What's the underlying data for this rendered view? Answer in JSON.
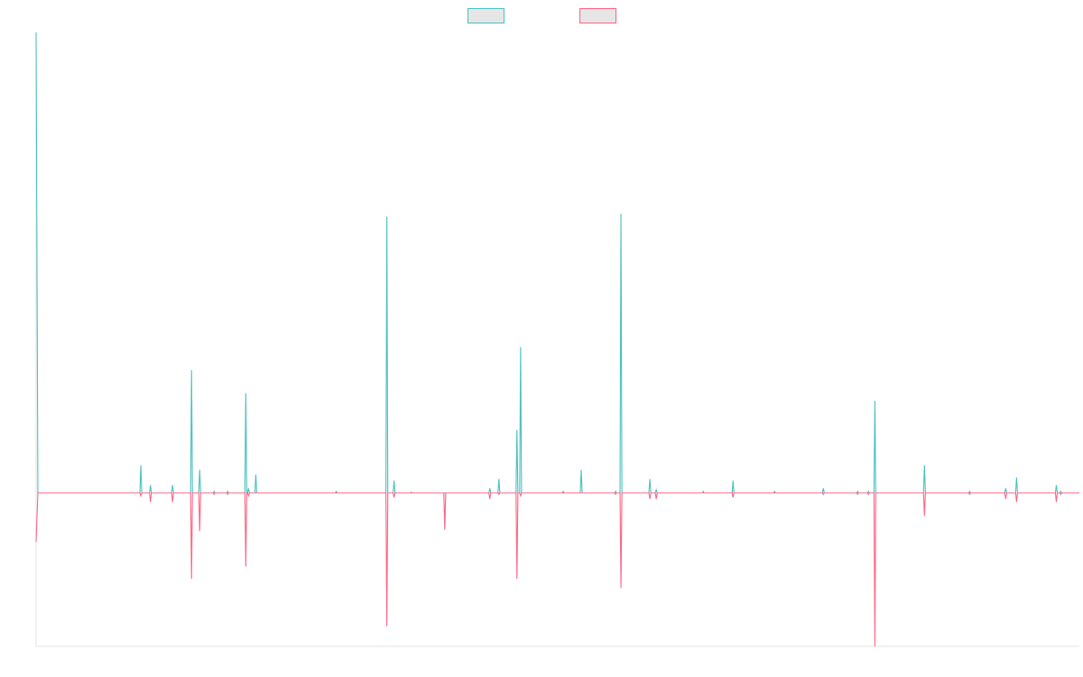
{
  "chart_data": {
    "type": "line",
    "title": "",
    "xlabel": "",
    "ylabel": "",
    "grid": false,
    "legend_position": "top-center",
    "x_range": [
      0,
      1
    ],
    "ylim": [
      -100,
      300
    ],
    "baseline": 0,
    "series": [
      {
        "color": "#4bc0c0",
        "fill": "#e6e6e6",
        "points": [
          [
            0.0,
            300
          ],
          [
            0.0017,
            0
          ],
          [
            0.0995,
            0
          ],
          [
            0.1004,
            18
          ],
          [
            0.1013,
            0
          ],
          [
            0.1087,
            0
          ],
          [
            0.1096,
            5
          ],
          [
            0.1105,
            0
          ],
          [
            0.1299,
            0
          ],
          [
            0.1308,
            5
          ],
          [
            0.1317,
            0
          ],
          [
            0.1481,
            0
          ],
          [
            0.149,
            80
          ],
          [
            0.1499,
            0
          ],
          [
            0.1559,
            0
          ],
          [
            0.1568,
            15
          ],
          [
            0.1577,
            0
          ],
          [
            0.1698,
            0
          ],
          [
            0.1706,
            1
          ],
          [
            0.1715,
            0
          ],
          [
            0.1827,
            0
          ],
          [
            0.1836,
            1
          ],
          [
            0.1845,
            0
          ],
          [
            0.2001,
            0
          ],
          [
            0.201,
            65
          ],
          [
            0.2019,
            0
          ],
          [
            0.2027,
            0
          ],
          [
            0.2036,
            3
          ],
          [
            0.2045,
            0
          ],
          [
            0.2097,
            0
          ],
          [
            0.2106,
            12
          ],
          [
            0.2115,
            0
          ],
          [
            0.2868,
            0
          ],
          [
            0.2877,
            1
          ],
          [
            0.2886,
            0
          ],
          [
            0.3353,
            0
          ],
          [
            0.3362,
            180
          ],
          [
            0.3371,
            0
          ],
          [
            0.3422,
            0
          ],
          [
            0.3431,
            8
          ],
          [
            0.344,
            0
          ],
          [
            0.3587,
            0
          ],
          [
            0.3596,
            0.5
          ],
          [
            0.3605,
            0
          ],
          [
            0.434,
            0
          ],
          [
            0.4349,
            3
          ],
          [
            0.4358,
            0
          ],
          [
            0.4427,
            0
          ],
          [
            0.4436,
            9
          ],
          [
            0.4445,
            0
          ],
          [
            0.46,
            0
          ],
          [
            0.4609,
            41
          ],
          [
            0.4618,
            0
          ],
          [
            0.4635,
            0
          ],
          [
            0.4644,
            95
          ],
          [
            0.4653,
            0
          ],
          [
            0.5043,
            0
          ],
          [
            0.5052,
            1
          ],
          [
            0.5061,
            0
          ],
          [
            0.5216,
            0
          ],
          [
            0.5225,
            15
          ],
          [
            0.5234,
            0
          ],
          [
            0.5545,
            0
          ],
          [
            0.5554,
            1
          ],
          [
            0.5563,
            0
          ],
          [
            0.5597,
            0
          ],
          [
            0.5606,
            182
          ],
          [
            0.5615,
            0
          ],
          [
            0.5874,
            0
          ],
          [
            0.5883,
            9
          ],
          [
            0.5892,
            0
          ],
          [
            0.5935,
            0
          ],
          [
            0.5944,
            2
          ],
          [
            0.5953,
            0
          ],
          [
            0.6386,
            0
          ],
          [
            0.6395,
            1
          ],
          [
            0.6404,
            0
          ],
          [
            0.6672,
            0
          ],
          [
            0.668,
            8
          ],
          [
            0.6689,
            0
          ],
          [
            0.707,
            0
          ],
          [
            0.7078,
            1
          ],
          [
            0.7087,
            0
          ],
          [
            0.7537,
            0
          ],
          [
            0.7546,
            3
          ],
          [
            0.7554,
            0
          ],
          [
            0.7866,
            0
          ],
          [
            0.7874,
            1
          ],
          [
            0.7883,
            0
          ],
          [
            0.797,
            0
          ],
          [
            0.7978,
            1
          ],
          [
            0.7987,
            0
          ],
          [
            0.8031,
            0
          ],
          [
            0.804,
            60
          ],
          [
            0.8048,
            0
          ],
          [
            0.8506,
            0
          ],
          [
            0.8515,
            18
          ],
          [
            0.8524,
            0
          ],
          [
            0.8939,
            0
          ],
          [
            0.8948,
            1
          ],
          [
            0.8957,
            0
          ],
          [
            0.9285,
            0
          ],
          [
            0.9294,
            3
          ],
          [
            0.9303,
            0
          ],
          [
            0.9389,
            0
          ],
          [
            0.9398,
            10
          ],
          [
            0.9407,
            0
          ],
          [
            0.977,
            0
          ],
          [
            0.9779,
            5
          ],
          [
            0.9788,
            0
          ],
          [
            0.9813,
            0
          ],
          [
            0.9822,
            1
          ],
          [
            0.9831,
            0
          ],
          [
            1.0,
            0
          ]
        ]
      },
      {
        "color": "#ff6384",
        "fill": "#e6e6e6",
        "points": [
          [
            0.0,
            -32
          ],
          [
            0.0017,
            0
          ],
          [
            0.0995,
            0
          ],
          [
            0.1004,
            -2
          ],
          [
            0.1013,
            0
          ],
          [
            0.1087,
            0
          ],
          [
            0.1096,
            -6
          ],
          [
            0.1105,
            0
          ],
          [
            0.1299,
            0
          ],
          [
            0.1308,
            -6
          ],
          [
            0.1317,
            0
          ],
          [
            0.1481,
            0
          ],
          [
            0.149,
            -56
          ],
          [
            0.1499,
            0
          ],
          [
            0.1559,
            0
          ],
          [
            0.1568,
            -25
          ],
          [
            0.1577,
            0
          ],
          [
            0.1698,
            0
          ],
          [
            0.1706,
            -1
          ],
          [
            0.1715,
            0
          ],
          [
            0.1827,
            0
          ],
          [
            0.1836,
            -1
          ],
          [
            0.1845,
            0
          ],
          [
            0.2001,
            0
          ],
          [
            0.201,
            -48
          ],
          [
            0.2019,
            0
          ],
          [
            0.2027,
            0
          ],
          [
            0.2036,
            -2
          ],
          [
            0.2045,
            0
          ],
          [
            0.3353,
            0
          ],
          [
            0.3362,
            -87
          ],
          [
            0.3371,
            0
          ],
          [
            0.3422,
            0
          ],
          [
            0.3431,
            -3
          ],
          [
            0.344,
            0
          ],
          [
            0.3908,
            0
          ],
          [
            0.3917,
            -24
          ],
          [
            0.3926,
            0
          ],
          [
            0.434,
            0
          ],
          [
            0.4349,
            -4
          ],
          [
            0.4358,
            0
          ],
          [
            0.4427,
            0
          ],
          [
            0.4436,
            -1
          ],
          [
            0.4445,
            0
          ],
          [
            0.46,
            0
          ],
          [
            0.4609,
            -56
          ],
          [
            0.4618,
            0
          ],
          [
            0.4635,
            0
          ],
          [
            0.4644,
            -2
          ],
          [
            0.4653,
            0
          ],
          [
            0.5545,
            0
          ],
          [
            0.5554,
            -1
          ],
          [
            0.5563,
            0
          ],
          [
            0.5597,
            0
          ],
          [
            0.5606,
            -62
          ],
          [
            0.5615,
            0
          ],
          [
            0.5874,
            0
          ],
          [
            0.5883,
            -4
          ],
          [
            0.5892,
            0
          ],
          [
            0.5935,
            0
          ],
          [
            0.5944,
            -4
          ],
          [
            0.5953,
            0
          ],
          [
            0.6672,
            0
          ],
          [
            0.668,
            -3
          ],
          [
            0.6689,
            0
          ],
          [
            0.7537,
            0
          ],
          [
            0.7546,
            -1
          ],
          [
            0.7554,
            0
          ],
          [
            0.7866,
            0
          ],
          [
            0.7874,
            -1
          ],
          [
            0.7883,
            0
          ],
          [
            0.797,
            0
          ],
          [
            0.7978,
            -1
          ],
          [
            0.7987,
            0
          ],
          [
            0.8031,
            0
          ],
          [
            0.804,
            -100
          ],
          [
            0.8048,
            0
          ],
          [
            0.8506,
            0
          ],
          [
            0.8515,
            -15
          ],
          [
            0.8524,
            0
          ],
          [
            0.8939,
            0
          ],
          [
            0.8948,
            -1
          ],
          [
            0.8957,
            0
          ],
          [
            0.9285,
            0
          ],
          [
            0.9294,
            -4
          ],
          [
            0.9303,
            0
          ],
          [
            0.9389,
            0
          ],
          [
            0.9398,
            -6
          ],
          [
            0.9407,
            0
          ],
          [
            0.977,
            0
          ],
          [
            0.9779,
            -6
          ],
          [
            0.9788,
            0
          ],
          [
            0.9813,
            0
          ],
          [
            0.9822,
            -1
          ],
          [
            0.9831,
            0
          ],
          [
            1.0,
            0
          ]
        ]
      }
    ]
  }
}
